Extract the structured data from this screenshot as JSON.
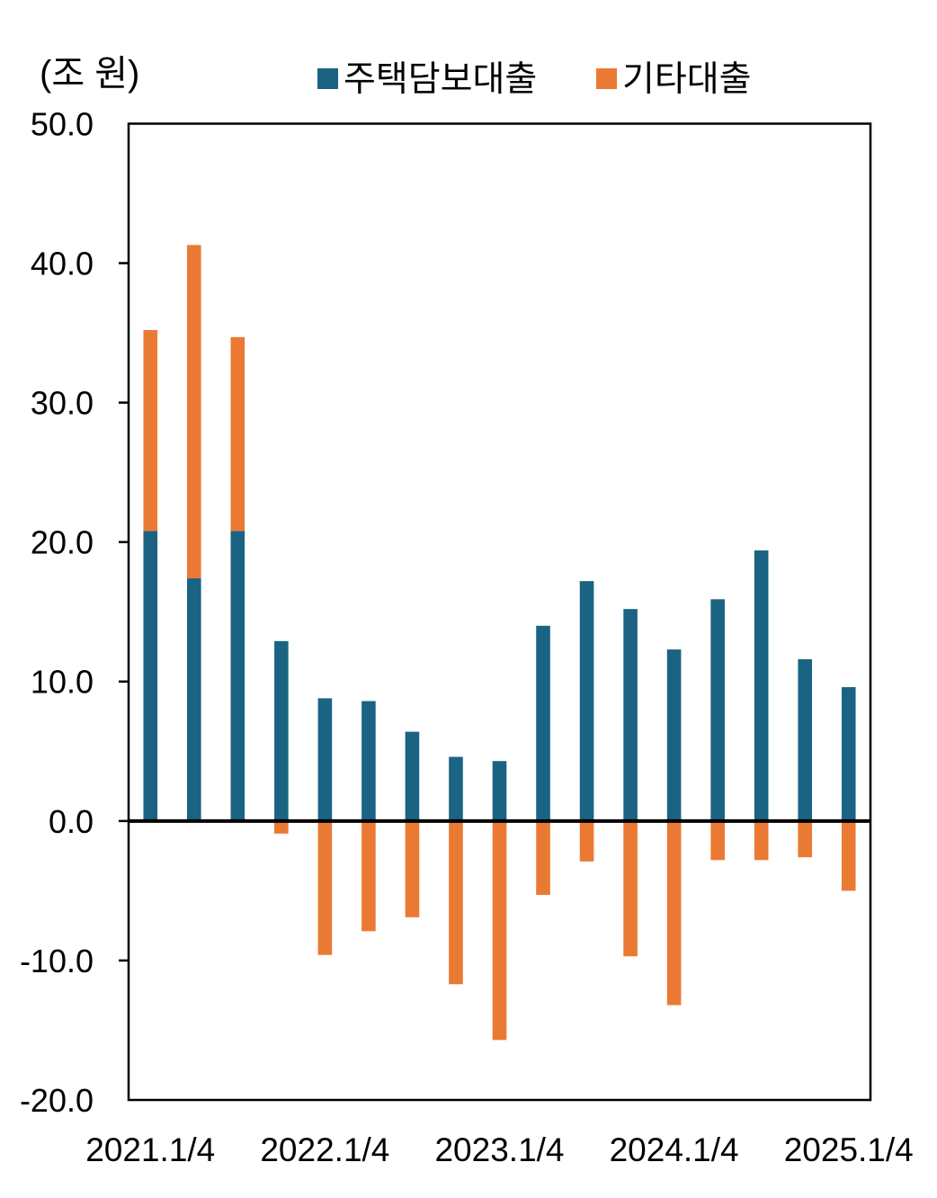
{
  "unit_label": "(조 원)",
  "legend": {
    "items": [
      {
        "label": "주택담보대출",
        "color": "#1B6383"
      },
      {
        "label": "기타대출",
        "color": "#EA7A33"
      }
    ]
  },
  "y_axis": {
    "tick_labels": [
      "50.0",
      "40.0",
      "30.0",
      "20.0",
      "10.0",
      "0.0",
      "-10.0",
      "-20.0"
    ],
    "max": 50,
    "min": -20,
    "step": 10
  },
  "x_axis": {
    "tick_labels": [
      "2021.1/4",
      "2022.1/4",
      "2023.1/4",
      "2024.1/4",
      "2025.1/4"
    ],
    "tick_positions": [
      0,
      4,
      8,
      12,
      16
    ]
  },
  "chart_data": {
    "type": "bar",
    "stacked": true,
    "title": "",
    "unit": "조 원",
    "xlabel": "",
    "ylabel": "",
    "ylim": [
      -20,
      50
    ],
    "ytick_step": 10,
    "grid": false,
    "legend_position": "top",
    "categories": [
      "2021.1/4",
      "2021.2/4",
      "2021.3/4",
      "2021.4/4",
      "2022.1/4",
      "2022.2/4",
      "2022.3/4",
      "2022.4/4",
      "2023.1/4",
      "2023.2/4",
      "2023.3/4",
      "2023.4/4",
      "2024.1/4",
      "2024.2/4",
      "2024.3/4",
      "2024.4/4",
      "2025.1/4"
    ],
    "series": [
      {
        "name": "주택담보대출",
        "color": "#1B6383",
        "values": [
          20.8,
          17.4,
          20.8,
          12.9,
          8.8,
          8.6,
          6.4,
          4.6,
          4.3,
          14.0,
          17.2,
          15.2,
          12.3,
          15.9,
          19.4,
          11.6,
          9.6
        ]
      },
      {
        "name": "기타대출",
        "color": "#EA7A33",
        "values": [
          14.4,
          23.9,
          13.9,
          -0.9,
          -9.6,
          -7.9,
          -6.9,
          -11.7,
          -15.7,
          -5.3,
          -2.9,
          -9.7,
          -13.2,
          -2.8,
          -2.8,
          -2.6,
          -5.0
        ]
      }
    ]
  }
}
